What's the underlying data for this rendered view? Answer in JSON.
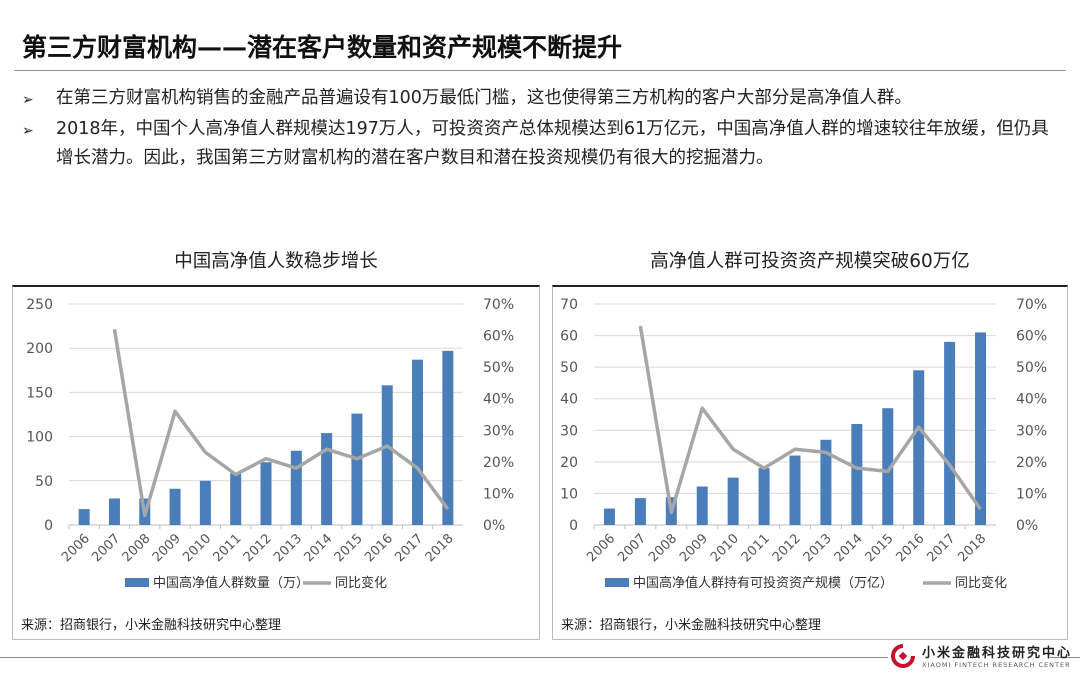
{
  "title": "第三方财富机构——潜在客户数量和资产规模不断提升",
  "bullets": [
    "在第三方财富机构销售的金融产品普遍设有100万最低门槛，这也使得第三方机构的客户大部分是高净值人群。",
    "2018年，中国个人高净值人群规模达197万人，可投资资产总体规模达到61万亿元，中国高净值人群的增速较往年放缓，但仍具增长潜力。因此，我国第三方财富机构的潜在客户数目和潜在投资规模仍有很大的挖掘潜力。"
  ],
  "bullet_icon": "arrow-right-icon",
  "chart_data": [
    {
      "type": "bar",
      "title": "中国高净值人数稳步增长",
      "categories": [
        "2006",
        "2007",
        "2008",
        "2009",
        "2010",
        "2011",
        "2012",
        "2013",
        "2014",
        "2015",
        "2016",
        "2017",
        "2018"
      ],
      "series": [
        {
          "name": "中国高净值人群数量（万）",
          "type": "bar",
          "axis": "left",
          "color": "#4a7ebb",
          "values": [
            18,
            30,
            30,
            41,
            50,
            59,
            71,
            84,
            104,
            126,
            158,
            187,
            197
          ]
        },
        {
          "name": "同比变化",
          "type": "line",
          "axis": "right",
          "color": "#a6a6a6",
          "values": [
            null,
            62,
            3,
            36,
            23,
            16,
            21,
            18,
            24,
            21,
            25,
            18,
            5
          ]
        }
      ],
      "ylim": [
        0,
        250
      ],
      "yticks": [
        "0",
        "50",
        "100",
        "150",
        "200",
        "250"
      ],
      "y2lim": [
        0,
        70
      ],
      "y2ticks": [
        "0%",
        "10%",
        "20%",
        "30%",
        "40%",
        "50%",
        "60%",
        "70%"
      ],
      "legend": "bottom",
      "grid": true,
      "source": "来源：招商银行，小米金融科技研究中心整理"
    },
    {
      "type": "bar",
      "title": "高净值人群可投资资产规模突破60万亿",
      "categories": [
        "2006",
        "2007",
        "2008",
        "2009",
        "2010",
        "2011",
        "2012",
        "2013",
        "2014",
        "2015",
        "2016",
        "2017",
        "2018"
      ],
      "series": [
        {
          "name": "中国高净值人群持有可投资资产规模（万亿）",
          "type": "bar",
          "axis": "left",
          "color": "#4a7ebb",
          "values": [
            5.2,
            8.5,
            8.8,
            12.2,
            15,
            18,
            22,
            27,
            32,
            37,
            49,
            58,
            61
          ]
        },
        {
          "name": "同比变化",
          "type": "line",
          "axis": "right",
          "color": "#a6a6a6",
          "values": [
            null,
            63,
            4,
            37,
            24,
            18,
            24,
            23,
            18,
            17,
            31,
            19,
            5
          ]
        }
      ],
      "ylim": [
        0,
        70
      ],
      "yticks": [
        "0",
        "10",
        "20",
        "30",
        "40",
        "50",
        "60",
        "70"
      ],
      "y2lim": [
        0,
        70
      ],
      "y2ticks": [
        "0%",
        "10%",
        "20%",
        "30%",
        "40%",
        "50%",
        "60%",
        "70%"
      ],
      "legend": "bottom",
      "grid": true,
      "source": "来源：招商银行，小米金融科技研究中心整理"
    }
  ],
  "footer": {
    "logo_cn": "小米金融科技研究中心",
    "logo_en": "XIAOMI FINTECH RESEARCH CENTER"
  }
}
